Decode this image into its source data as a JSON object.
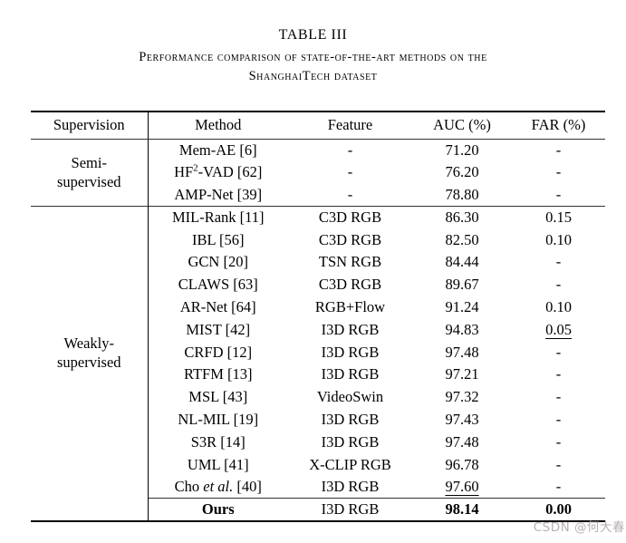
{
  "title": "TABLE III",
  "caption_line1": "Performance comparison of state-of-the-art methods on the",
  "caption_line2": "ShanghaiTech dataset",
  "watermark": "CSDN @何大春",
  "table": {
    "columns": [
      "Supervision",
      "Method",
      "Feature",
      "AUC (%)",
      "FAR (%)"
    ],
    "sections": [
      {
        "supervision_line1": "Semi-",
        "supervision_line2": "supervised",
        "rows": [
          {
            "method": "Mem-AE [6]",
            "feature": "-",
            "auc": "71.20",
            "far": "-"
          },
          {
            "method": "HF^2^-VAD [62]",
            "feature": "-",
            "auc": "76.20",
            "far": "-"
          },
          {
            "method": "AMP-Net [39]",
            "feature": "-",
            "auc": "78.80",
            "far": "-"
          }
        ]
      },
      {
        "supervision_line1": "Weakly-",
        "supervision_line2": "supervised",
        "rows": [
          {
            "method": "MIL-Rank [11]",
            "feature": "C3D RGB",
            "auc": "86.30",
            "far": "0.15"
          },
          {
            "method": "IBL [56]",
            "feature": "C3D RGB",
            "auc": "82.50",
            "far": "0.10"
          },
          {
            "method": "GCN [20]",
            "feature": "TSN RGB",
            "auc": "84.44",
            "far": "-"
          },
          {
            "method": "CLAWS [63]",
            "feature": "C3D RGB",
            "auc": "89.67",
            "far": "-"
          },
          {
            "method": "AR-Net [64]",
            "feature": "RGB+Flow",
            "auc": "91.24",
            "far": "0.10"
          },
          {
            "method": "MIST [42]",
            "feature": "I3D RGB",
            "auc": "94.83",
            "far": "0.05",
            "far_underline": true
          },
          {
            "method": "CRFD [12]",
            "feature": "I3D RGB",
            "auc": "97.48",
            "far": "-"
          },
          {
            "method": "RTFM [13]",
            "feature": "I3D RGB",
            "auc": "97.21",
            "far": "-"
          },
          {
            "method": "MSL [43]",
            "feature": "VideoSwin",
            "auc": "97.32",
            "far": "-"
          },
          {
            "method": "NL-MIL [19]",
            "feature": "I3D RGB",
            "auc": "97.43",
            "far": "-"
          },
          {
            "method": "S3R [14]",
            "feature": "I3D RGB",
            "auc": "97.48",
            "far": "-"
          },
          {
            "method": "UML [41]",
            "feature": "X-CLIP RGB",
            "auc": "96.78",
            "far": "-"
          },
          {
            "method": "Cho *et al.* [40]",
            "feature": "I3D RGB",
            "auc": "97.60",
            "far": "-",
            "auc_underline": true
          }
        ]
      }
    ],
    "ours_row": {
      "method": "Ours",
      "feature": "I3D RGB",
      "auc": "98.14",
      "far": "0.00",
      "bold": true
    }
  }
}
